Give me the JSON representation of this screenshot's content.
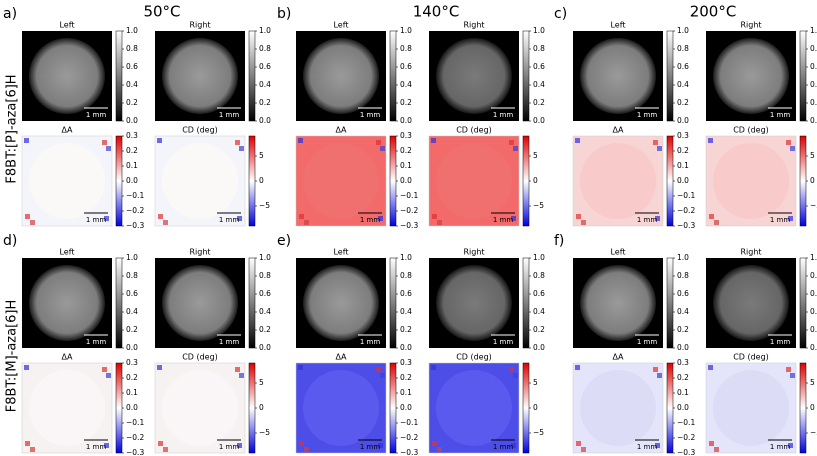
{
  "panel_labels": [
    "a)",
    "b)",
    "c)",
    "d)",
    "e)",
    "f)"
  ],
  "temperatures": [
    "50°C",
    "140°C",
    "200°C"
  ],
  "row_labels": [
    "F8BT:[P]-aza[6]H",
    "F8BT:[M]-aza[6]H"
  ],
  "image_titles": {
    "left": "Left",
    "right": "Right",
    "delta_a": "ΔA",
    "cd": "CD (deg)"
  },
  "scale_bar": "1 mm",
  "colorbars": {
    "gray": {
      "lim": [
        0,
        1
      ],
      "ticks": [
        {
          "value": 0,
          "label": "0.0"
        },
        0.2,
        0.4,
        0.6,
        0.8,
        {
          "value": 1,
          "label": "1.0"
        }
      ]
    },
    "delta_a": {
      "lim": [
        -0.3,
        0.3
      ],
      "ticks": [
        {
          "value": -0.3,
          "label": "−0.3"
        },
        {
          "value": -0.2,
          "label": "−0.2"
        },
        {
          "value": -0.1,
          "label": "−0.1"
        },
        {
          "value": 0,
          "label": "0.0"
        },
        0.1,
        0.2,
        0.3
      ]
    },
    "cd": {
      "lim": [
        -9,
        9
      ],
      "ticks": [
        {
          "value": -5,
          "label": "−5"
        },
        0,
        5
      ]
    }
  }
}
